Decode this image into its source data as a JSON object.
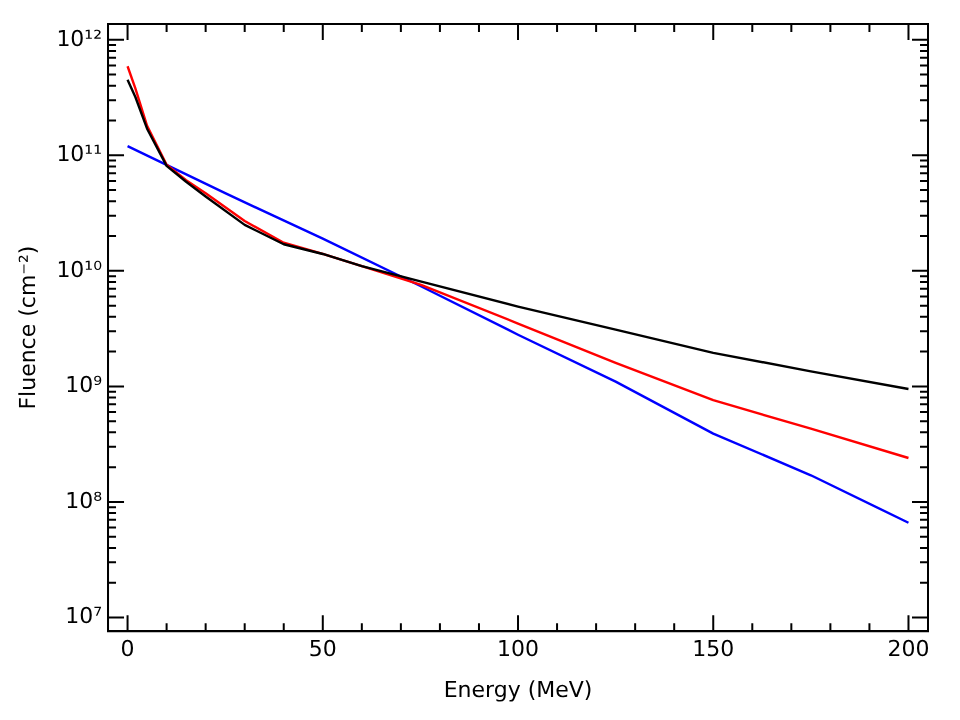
{
  "chart_data": {
    "type": "line",
    "xlabel": "Energy (MeV)",
    "ylabel": "Fluence (cm⁻²)",
    "log": "y",
    "grid": false,
    "legend": false,
    "marker": "none",
    "line_style": "solid",
    "xlim": [
      -5,
      205
    ],
    "ylim": [
      7600000,
      1370000000000
    ],
    "xticks": [
      0,
      {
        "value": 10,
        "label": null
      },
      {
        "value": 20,
        "label": null
      },
      {
        "value": 30,
        "label": null
      },
      {
        "value": 40,
        "label": null
      },
      50,
      {
        "value": 60,
        "label": null
      },
      {
        "value": 70,
        "label": null
      },
      {
        "value": 80,
        "label": null
      },
      {
        "value": 90,
        "label": null
      },
      100,
      {
        "value": 110,
        "label": null
      },
      {
        "value": 120,
        "label": null
      },
      {
        "value": 130,
        "label": null
      },
      {
        "value": 140,
        "label": null
      },
      150,
      {
        "value": 160,
        "label": null
      },
      {
        "value": 170,
        "label": null
      },
      {
        "value": 180,
        "label": null
      },
      {
        "value": 190,
        "label": null
      },
      200
    ],
    "yticks": [
      {
        "value": 10000000,
        "label": "10⁷"
      },
      {
        "value": 20000000,
        "label": null
      },
      {
        "value": 30000000,
        "label": null
      },
      {
        "value": 40000000,
        "label": null
      },
      {
        "value": 50000000,
        "label": null
      },
      {
        "value": 60000000,
        "label": null
      },
      {
        "value": 70000000,
        "label": null
      },
      {
        "value": 80000000,
        "label": null
      },
      {
        "value": 90000000,
        "label": null
      },
      {
        "value": 100000000,
        "label": "10⁸"
      },
      {
        "value": 200000000,
        "label": null
      },
      {
        "value": 300000000,
        "label": null
      },
      {
        "value": 400000000,
        "label": null
      },
      {
        "value": 500000000,
        "label": null
      },
      {
        "value": 600000000,
        "label": null
      },
      {
        "value": 700000000,
        "label": null
      },
      {
        "value": 800000000,
        "label": null
      },
      {
        "value": 900000000,
        "label": null
      },
      {
        "value": 1000000000,
        "label": "10⁹"
      },
      {
        "value": 2000000000,
        "label": null
      },
      {
        "value": 3000000000,
        "label": null
      },
      {
        "value": 4000000000,
        "label": null
      },
      {
        "value": 5000000000,
        "label": null
      },
      {
        "value": 6000000000,
        "label": null
      },
      {
        "value": 7000000000,
        "label": null
      },
      {
        "value": 8000000000,
        "label": null
      },
      {
        "value": 9000000000,
        "label": null
      },
      {
        "value": 10000000000,
        "label": "10¹⁰"
      },
      {
        "value": 20000000000,
        "label": null
      },
      {
        "value": 30000000000,
        "label": null
      },
      {
        "value": 40000000000,
        "label": null
      },
      {
        "value": 50000000000,
        "label": null
      },
      {
        "value": 60000000000,
        "label": null
      },
      {
        "value": 70000000000,
        "label": null
      },
      {
        "value": 80000000000,
        "label": null
      },
      {
        "value": 90000000000,
        "label": null
      },
      {
        "value": 100000000000,
        "label": "10¹¹"
      },
      {
        "value": 200000000000,
        "label": null
      },
      {
        "value": 300000000000,
        "label": null
      },
      {
        "value": 400000000000,
        "label": null
      },
      {
        "value": 500000000000,
        "label": null
      },
      {
        "value": 600000000000,
        "label": null
      },
      {
        "value": 700000000000,
        "label": null
      },
      {
        "value": 800000000000,
        "label": null
      },
      {
        "value": 900000000000,
        "label": null
      },
      {
        "value": 1000000000000,
        "label": "10¹²"
      }
    ],
    "series": [
      {
        "color": "#000000",
        "x": [
          0,
          2,
          5,
          10,
          15,
          20,
          30,
          40,
          50,
          60,
          75,
          100,
          125,
          150,
          175,
          200
        ],
        "values": [
          450000000000,
          320000000000,
          170000000000,
          81000000000,
          59000000000,
          44000000000,
          25000000000,
          17000000000,
          14000000000,
          11000000000,
          8100000000,
          4900000000,
          3100000000,
          1950000000,
          1350000000,
          950000000
        ]
      },
      {
        "color": "#ff0000",
        "x": [
          0,
          2,
          5,
          10,
          15,
          20,
          30,
          40,
          50,
          60,
          75,
          100,
          125,
          150,
          175,
          200
        ],
        "values": [
          590000000000,
          380000000000,
          180000000000,
          83000000000,
          61000000000,
          47000000000,
          27000000000,
          17500000000,
          14000000000,
          11000000000,
          7600000000,
          3500000000,
          1600000000,
          760000000,
          430000000,
          240000000
        ]
      },
      {
        "color": "#0000ff",
        "x": [
          0,
          25,
          50,
          75,
          100,
          125,
          150,
          175,
          200
        ],
        "values": [
          120000000000,
          47000000000,
          19000000000,
          7400000000,
          2800000000,
          1100000000,
          390000000,
          170000000,
          66000000
        ]
      }
    ]
  }
}
